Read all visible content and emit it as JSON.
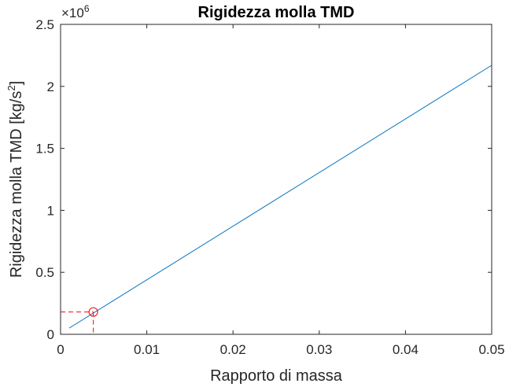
{
  "chart_data": {
    "type": "line",
    "title": "Rigidezza molla TMD",
    "xlabel": "Rapporto di massa",
    "ylabel": "Rigidezza molla TMD [kg/s",
    "ylabel_exponent": "2",
    "ylabel_close": "]",
    "y_multiplier_base": "×10",
    "y_multiplier_exponent": "6",
    "xlim": [
      0,
      0.05
    ],
    "ylim": [
      0,
      2.5
    ],
    "xticks": [
      0,
      0.01,
      0.02,
      0.03,
      0.04,
      0.05
    ],
    "xtick_labels": [
      "0",
      "0.01",
      "0.02",
      "0.03",
      "0.04",
      "0.05"
    ],
    "yticks": [
      0,
      0.5,
      1,
      1.5,
      2,
      2.5
    ],
    "ytick_labels": [
      "0",
      "0.5",
      "1",
      "1.5",
      "2",
      "2.5"
    ],
    "grid": false,
    "series": [
      {
        "x": [
          0.001,
          0.05
        ],
        "y": [
          0.05,
          2.17
        ],
        "color": "#0072BD"
      }
    ],
    "highlight_point": {
      "x": 0.0038,
      "y": 0.18,
      "color": "#FF0000"
    }
  },
  "colors": {
    "axis": "#262626",
    "line": "#0072BD",
    "marker": "#FF0000"
  }
}
